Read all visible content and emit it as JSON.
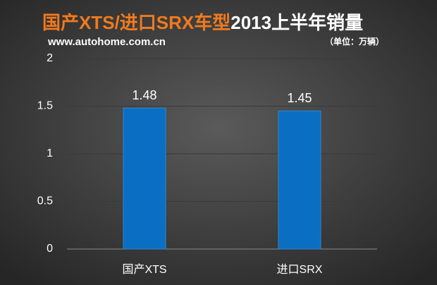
{
  "chart_data": {
    "type": "bar",
    "title": [
      "国产XTS/进口SRX车型",
      "2013上半年销量"
    ],
    "subtitle": "www.autohome.com.cn",
    "unit": "（单位：万辆）",
    "categories": [
      "国产XTS",
      "进口SRX"
    ],
    "values": [
      1.48,
      1.45
    ],
    "color": "#0a6fc2",
    "ylim": [
      0,
      2
    ],
    "yticks": [
      0,
      0.5,
      1,
      1.5,
      2
    ],
    "grid": true
  }
}
